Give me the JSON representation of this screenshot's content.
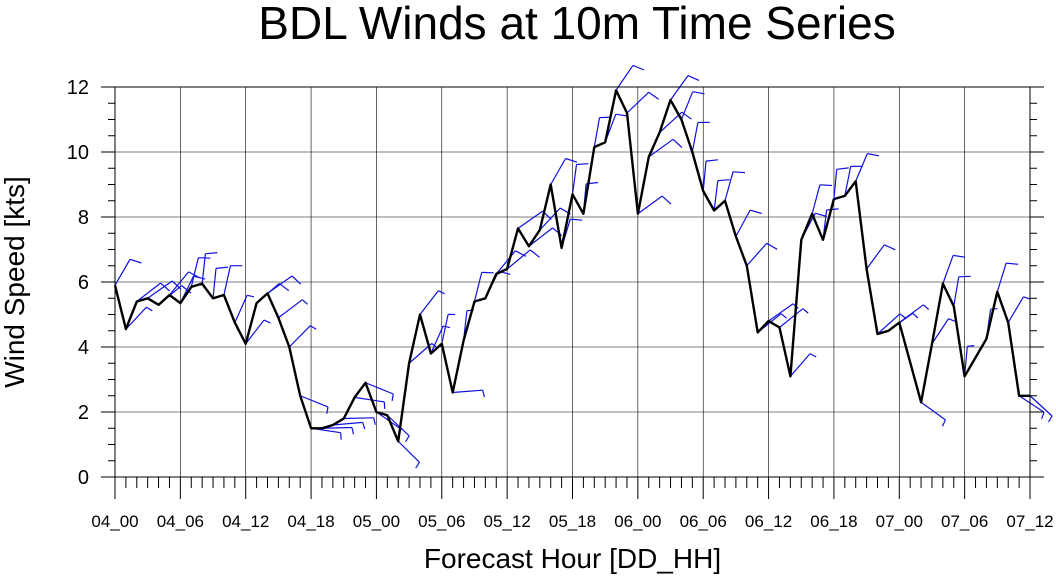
{
  "chart_data": {
    "type": "line",
    "title": "BDL Winds at 10m Time Series",
    "xlabel": "Forecast Hour [DD_HH]",
    "ylabel": "Wind Speed [kts]",
    "ylim": [
      0,
      12.2
    ],
    "yticks": [
      0,
      2,
      4,
      6,
      8,
      10,
      12
    ],
    "xlim": [
      0,
      84
    ],
    "xticks": [
      {
        "hour": 0,
        "label": "04_00"
      },
      {
        "hour": 6,
        "label": "04_06"
      },
      {
        "hour": 12,
        "label": "04_12"
      },
      {
        "hour": 18,
        "label": "04_18"
      },
      {
        "hour": 24,
        "label": "05_00"
      },
      {
        "hour": 30,
        "label": "05_06"
      },
      {
        "hour": 36,
        "label": "05_12"
      },
      {
        "hour": 42,
        "label": "05_18"
      },
      {
        "hour": 48,
        "label": "06_00"
      },
      {
        "hour": 54,
        "label": "06_06"
      },
      {
        "hour": 60,
        "label": "06_12"
      },
      {
        "hour": 66,
        "label": "06_18"
      },
      {
        "hour": 72,
        "label": "07_00"
      },
      {
        "hour": 78,
        "label": "07_06"
      },
      {
        "hour": 84,
        "label": "07_12"
      }
    ],
    "grid": true,
    "line_color": "#000000",
    "barb_color": "#1010e0",
    "series": [
      {
        "x": [
          0,
          1,
          2,
          3,
          4,
          5,
          6,
          7,
          8,
          9,
          10,
          11,
          12,
          13,
          14,
          15,
          16,
          17,
          18,
          19,
          20,
          21,
          22,
          23,
          24,
          25,
          26,
          27,
          28,
          29,
          30,
          31,
          32,
          33,
          34,
          35,
          36,
          37,
          38,
          39,
          40,
          41,
          42,
          43,
          44,
          45,
          46,
          47,
          48,
          49,
          50,
          51,
          52,
          53,
          54,
          55,
          56,
          57,
          58,
          59,
          60,
          61,
          62,
          63,
          64,
          65,
          66,
          67,
          68,
          69,
          70,
          71,
          72,
          74,
          75,
          76,
          77,
          78,
          80,
          81,
          82,
          83,
          84
        ],
        "values": [
          5.9,
          4.55,
          5.4,
          5.5,
          5.3,
          5.6,
          5.35,
          5.85,
          5.95,
          5.5,
          5.6,
          4.75,
          4.1,
          5.35,
          5.65,
          4.9,
          4.0,
          2.5,
          1.5,
          1.5,
          1.6,
          1.8,
          2.45,
          2.9,
          2.0,
          1.9,
          1.1,
          3.5,
          5.0,
          3.8,
          4.1,
          2.6,
          4.2,
          5.4,
          5.5,
          6.25,
          6.4,
          7.65,
          7.1,
          7.6,
          9.0,
          7.05,
          8.7,
          8.1,
          10.15,
          10.3,
          11.9,
          11.2,
          8.1,
          9.85,
          10.6,
          11.6,
          11.0,
          10.0,
          8.8,
          8.2,
          8.5,
          7.4,
          6.5,
          4.45,
          4.8,
          4.6,
          3.1,
          7.3,
          8.1,
          7.3,
          8.55,
          8.65,
          9.1,
          6.4,
          4.4,
          4.5,
          4.75,
          2.3,
          4.1,
          5.95,
          5.25,
          3.1,
          4.25,
          5.7,
          4.75,
          2.5,
          2.5
        ]
      }
    ]
  }
}
